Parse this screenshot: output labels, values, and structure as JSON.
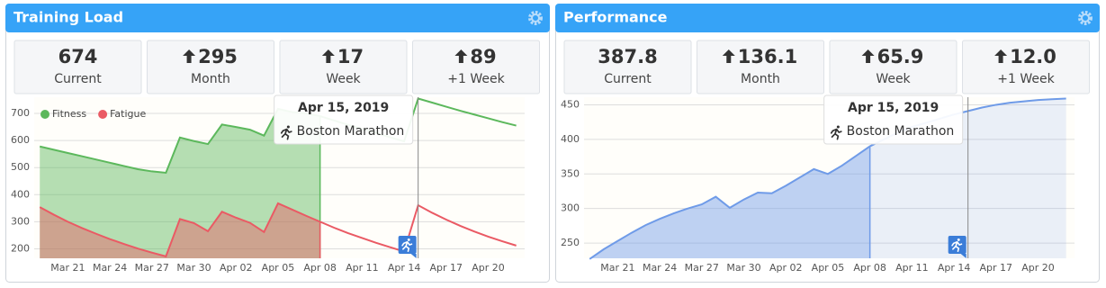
{
  "panels": [
    {
      "title": "Training Load",
      "stats": [
        {
          "value": "674",
          "label": "Current",
          "arrow": false
        },
        {
          "value": "295",
          "label": "Month",
          "arrow": true
        },
        {
          "value": "17",
          "label": "Week",
          "arrow": true
        },
        {
          "value": "89",
          "label": "+1 Week",
          "arrow": true
        }
      ]
    },
    {
      "title": "Performance",
      "stats": [
        {
          "value": "387.8",
          "label": "Current",
          "arrow": false
        },
        {
          "value": "136.1",
          "label": "Month",
          "arrow": true
        },
        {
          "value": "65.9",
          "label": "Week",
          "arrow": true
        },
        {
          "value": "12.0",
          "label": "+1 Week",
          "arrow": true
        }
      ]
    }
  ],
  "chart_data": [
    {
      "type": "area",
      "categories": [
        null,
        null,
        "Mar 21",
        null,
        null,
        "Mar 24",
        null,
        null,
        "Mar 27",
        null,
        null,
        "Mar 30",
        null,
        null,
        "Apr 02",
        null,
        null,
        "Apr 05",
        null,
        null,
        "Apr 08",
        null,
        null,
        "Apr 11",
        null,
        null,
        "Apr 14",
        null,
        null,
        "Apr 17",
        null,
        null,
        "Apr 20",
        null,
        null
      ],
      "series": [
        {
          "name": "Fitness",
          "color": "#5cb85c",
          "values": [
            578,
            566,
            554,
            542,
            530,
            518,
            506,
            494,
            486,
            481,
            611,
            598,
            587,
            659,
            650,
            640,
            618,
            717,
            705,
            700,
            690,
            674,
            658,
            643,
            628,
            612,
            597,
            755,
            740,
            725,
            710,
            696,
            682,
            668,
            655
          ]
        },
        {
          "name": "Fatigue",
          "color": "#ea5a64",
          "values": [
            354,
            326,
            300,
            277,
            256,
            236,
            218,
            201,
            186,
            172,
            310,
            295,
            265,
            337,
            315,
            296,
            262,
            368,
            345,
            322,
            300,
            278,
            258,
            240,
            222,
            206,
            190,
            361,
            333,
            308,
            285,
            264,
            245,
            228,
            212
          ]
        }
      ],
      "ylim": [
        165,
        760
      ],
      "yticks": [
        200,
        300,
        400,
        500,
        600,
        700
      ],
      "grid": true,
      "legend": "top-left",
      "filled_through": "Apr 08",
      "future_fill": false,
      "annotation": {
        "title": "Apr 15, 2019",
        "text": "Boston Marathon"
      }
    },
    {
      "type": "area",
      "categories": [
        null,
        null,
        "Mar 21",
        null,
        null,
        "Mar 24",
        null,
        null,
        "Mar 27",
        null,
        null,
        "Mar 30",
        null,
        null,
        "Apr 02",
        null,
        null,
        "Apr 05",
        null,
        null,
        "Apr 08",
        null,
        null,
        "Apr 11",
        null,
        null,
        "Apr 14",
        null,
        null,
        "Apr 17",
        null,
        null,
        "Apr 20",
        null,
        null
      ],
      "series": [
        {
          "color": "#6f9be8",
          "values": [
            227,
            241,
            253,
            265,
            276,
            285,
            293,
            300,
            306,
            317,
            301,
            313,
            323,
            322,
            333,
            345,
            357,
            350,
            362,
            376,
            390,
            400,
            410,
            418,
            424,
            430,
            436,
            441,
            446,
            450,
            453,
            455,
            457,
            458,
            459
          ]
        }
      ],
      "ylim": [
        228,
        461
      ],
      "yticks": [
        250,
        300,
        350,
        400,
        450
      ],
      "grid": true,
      "filled_through": "Apr 08",
      "future_fill": true,
      "annotation": {
        "title": "Apr 15, 2019",
        "text": "Boston Marathon"
      }
    }
  ]
}
